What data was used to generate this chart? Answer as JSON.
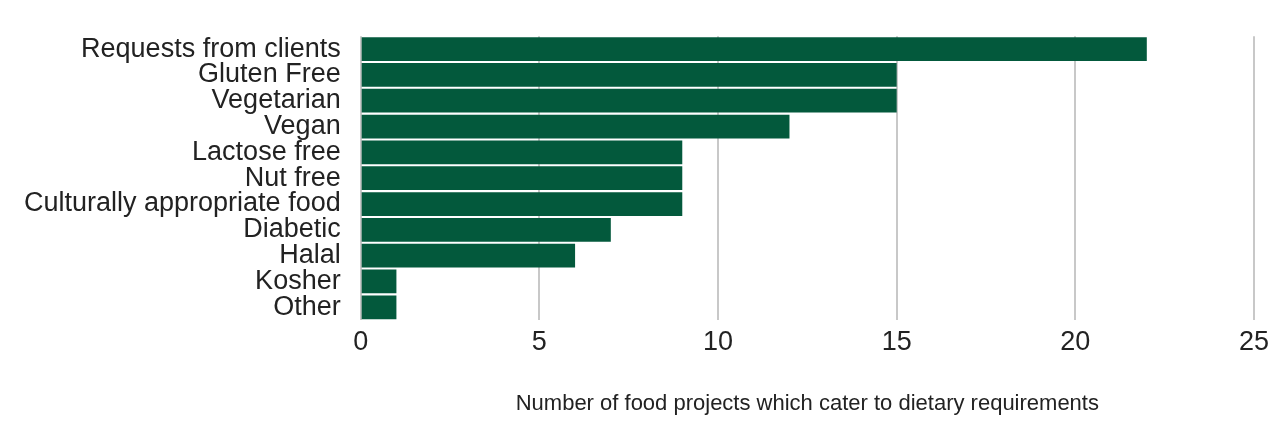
{
  "chart_data": {
    "type": "bar",
    "orientation": "horizontal",
    "xlabel": "Number of food projects which cater to dietary requirements",
    "categories": [
      "Requests from clients",
      "Gluten Free",
      "Vegetarian",
      "Vegan",
      "Lactose free",
      "Nut free",
      "Culturally appropriate food",
      "Diabetic",
      "Halal",
      "Kosher",
      "Other"
    ],
    "values": [
      22,
      15,
      15,
      12,
      9,
      9,
      9,
      7,
      6,
      1,
      1
    ],
    "color": "#03593c",
    "xlim": [
      0,
      25
    ],
    "xticks": [
      0,
      5,
      10,
      15,
      20,
      25
    ],
    "grid": "x",
    "legend": false
  }
}
